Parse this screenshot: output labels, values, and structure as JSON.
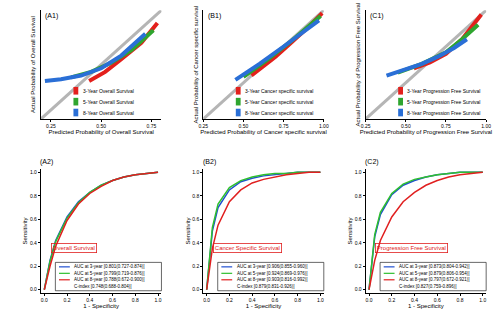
{
  "chart_data": [
    {
      "type": "calibration",
      "title": "(A1)",
      "x_label": "Predicted Probability of Overall Survival",
      "y_label": "Actual Probability of Overall Survival",
      "xlim": [
        0.2,
        0.8
      ],
      "ylim": [
        0.2,
        0.8
      ],
      "xticks": [
        0.25,
        {
          "value": 0.5,
          "label": "0.50"
        },
        0.75
      ],
      "tick_labels": "x",
      "legend": "lower right",
      "series": [
        {
          "color": "#b5b5b5",
          "x": [
            0.2,
            0.8
          ],
          "values": [
            0.2,
            0.8
          ]
        },
        {
          "name": "3-Year Overall Survival",
          "color": "#e3201c",
          "x": [
            0.44,
            0.52,
            0.6,
            0.7,
            0.78
          ],
          "values": [
            0.41,
            0.46,
            0.53,
            0.62,
            0.73
          ]
        },
        {
          "name": "5-Year Overall Survival",
          "color": "#2fa52f",
          "x": [
            0.35,
            0.45,
            0.55,
            0.65,
            0.76
          ],
          "values": [
            0.43,
            0.46,
            0.51,
            0.58,
            0.69
          ]
        },
        {
          "name": "8-Year Overall Survival",
          "color": "#2a6fd6",
          "x": [
            0.22,
            0.3,
            0.4,
            0.5,
            0.6,
            0.72
          ],
          "values": [
            0.41,
            0.42,
            0.44,
            0.48,
            0.55,
            0.67
          ]
        }
      ]
    },
    {
      "type": "calibration",
      "title": "(B1)",
      "x_label": "Predicted Probability of Cancer specific survival",
      "y_label": "Actual Probability of Cancer specific survival",
      "xlim": [
        0.25,
        1.0
      ],
      "ylim": [
        0.25,
        1.0
      ],
      "xticks": [
        0.25,
        {
          "value": 0.5,
          "label": "0.50"
        },
        0.75,
        {
          "value": 1,
          "label": "1.00"
        }
      ],
      "tick_labels": "x",
      "legend": "lower right",
      "series": [
        {
          "color": "#b5b5b5",
          "x": [
            0.25,
            1.0
          ],
          "values": [
            0.25,
            1.0
          ]
        },
        {
          "name": "3-Year Cancer specific survival",
          "color": "#e3201c",
          "x": [
            0.55,
            0.7,
            0.8,
            0.9,
            0.99
          ],
          "values": [
            0.55,
            0.68,
            0.78,
            0.88,
            0.98
          ]
        },
        {
          "name": "5-Year Cancer specific survival",
          "color": "#2fa52f",
          "x": [
            0.5,
            0.65,
            0.8,
            0.9,
            0.98
          ],
          "values": [
            0.54,
            0.66,
            0.79,
            0.88,
            0.96
          ]
        },
        {
          "name": "8-Year Cancer specific survival",
          "color": "#2a6fd6",
          "x": [
            0.45,
            0.6,
            0.75,
            0.9,
            0.97
          ],
          "values": [
            0.52,
            0.63,
            0.75,
            0.87,
            0.93
          ]
        }
      ]
    },
    {
      "type": "calibration",
      "title": "(C1)",
      "x_label": "Predicted Probability of Progression Free Survival",
      "y_label": "Actual Probability of Progression Free Survival",
      "xlim": [
        0.25,
        1.0
      ],
      "ylim": [
        0.25,
        1.0
      ],
      "xticks": [
        0.25,
        {
          "value": 0.5,
          "label": "0.50"
        },
        0.75,
        {
          "value": 1,
          "label": "1.00"
        }
      ],
      "tick_labels": "x",
      "legend": "lower right",
      "series": [
        {
          "color": "#b5b5b5",
          "x": [
            0.25,
            1.0
          ],
          "values": [
            0.25,
            1.0
          ]
        },
        {
          "name": "3-Year Progression Free Survival",
          "color": "#e3201c",
          "x": [
            0.55,
            0.65,
            0.75,
            0.85,
            0.97
          ],
          "values": [
            0.6,
            0.64,
            0.7,
            0.8,
            0.97
          ]
        },
        {
          "name": "5-Year Progression Free Survival",
          "color": "#2fa52f",
          "x": [
            0.45,
            0.6,
            0.75,
            0.85,
            0.95
          ],
          "values": [
            0.57,
            0.63,
            0.71,
            0.8,
            0.9
          ]
        },
        {
          "name": "8-Year Progression Free Survival",
          "color": "#2a6fd6",
          "x": [
            0.38,
            0.5,
            0.6,
            0.7,
            0.8,
            0.88
          ],
          "values": [
            0.55,
            0.59,
            0.63,
            0.68,
            0.74,
            0.8
          ]
        }
      ]
    },
    {
      "type": "roc",
      "title": "(A2)",
      "x_label": "1 - Specificity",
      "y_label": "Sensitivity",
      "xlim": [
        -0.03,
        1.03
      ],
      "ylim": [
        -0.03,
        1.03
      ],
      "xticks": [
        {
          "value": 0,
          "label": "0.0"
        },
        0.2,
        0.4,
        0.6,
        0.8,
        {
          "value": 1,
          "label": "1.0"
        }
      ],
      "yticks": [
        {
          "value": 0,
          "label": "0.0"
        },
        0.2,
        0.4,
        0.6,
        0.8,
        {
          "value": 1,
          "label": "1.0"
        }
      ],
      "legend": "lower right",
      "annotations": [
        "Overall Survival",
        "C-index [0.748(0.688-0.804)]"
      ],
      "series": [
        {
          "name": "AUC at 3-year [0.801(0.727-0.874)]",
          "color": "#1f4fd0",
          "x": [
            0,
            0.05,
            0.1,
            0.2,
            0.3,
            0.4,
            0.5,
            0.6,
            0.7,
            0.8,
            0.9,
            1
          ],
          "values": [
            0,
            0.25,
            0.42,
            0.62,
            0.75,
            0.83,
            0.89,
            0.93,
            0.96,
            0.98,
            0.99,
            1
          ]
        },
        {
          "name": "AUC at 5-year [0.799(0.719-0.876)]",
          "color": "#2fbf2f",
          "x": [
            0,
            0.05,
            0.1,
            0.2,
            0.3,
            0.4,
            0.5,
            0.6,
            0.7,
            0.8,
            0.9,
            1
          ],
          "values": [
            0,
            0.24,
            0.41,
            0.61,
            0.74,
            0.83,
            0.89,
            0.93,
            0.96,
            0.98,
            0.99,
            1
          ]
        },
        {
          "name": "AUC at 8-year [0.788(0.672-0.900)]",
          "color": "#e02020",
          "x": [
            0,
            0.05,
            0.1,
            0.2,
            0.3,
            0.4,
            0.5,
            0.6,
            0.7,
            0.8,
            0.9,
            1
          ],
          "values": [
            0,
            0.2,
            0.37,
            0.59,
            0.73,
            0.82,
            0.88,
            0.93,
            0.96,
            0.98,
            0.99,
            1
          ]
        }
      ]
    },
    {
      "type": "roc",
      "title": "(B2)",
      "x_label": "1 - Specificity",
      "y_label": "Sensitivity",
      "xlim": [
        -0.03,
        1.03
      ],
      "ylim": [
        -0.03,
        1.03
      ],
      "xticks": [
        {
          "value": 0,
          "label": "0.0"
        },
        0.2,
        0.4,
        0.6,
        0.8,
        {
          "value": 1,
          "label": "1.0"
        }
      ],
      "yticks": [
        {
          "value": 0,
          "label": "0.0"
        },
        0.2,
        0.4,
        0.6,
        0.8,
        {
          "value": 1,
          "label": "1.0"
        }
      ],
      "legend": "lower right",
      "annotations": [
        "Cancer Specific Survival",
        "C-index [0.879(0.831-0.926)]"
      ],
      "series": [
        {
          "name": "AUC at 3-year [0.906(0.855-0.960)]",
          "color": "#1f4fd0",
          "x": [
            0,
            0.05,
            0.1,
            0.2,
            0.3,
            0.4,
            0.5,
            0.6,
            0.7,
            0.8,
            0.9,
            1
          ],
          "values": [
            0,
            0.5,
            0.7,
            0.85,
            0.92,
            0.95,
            0.97,
            0.98,
            0.99,
            1,
            1,
            1
          ]
        },
        {
          "name": "AUC at 5-year [0.924(0.869-0.976)]",
          "color": "#2fbf2f",
          "x": [
            0,
            0.05,
            0.1,
            0.2,
            0.3,
            0.4,
            0.5,
            0.6,
            0.7,
            0.8,
            0.9,
            1
          ],
          "values": [
            0,
            0.53,
            0.73,
            0.87,
            0.93,
            0.96,
            0.98,
            0.99,
            0.99,
            1,
            1,
            1
          ]
        },
        {
          "name": "AUC at 8-year [0.903(0.816-0.992)]",
          "color": "#e02020",
          "x": [
            0,
            0.05,
            0.1,
            0.2,
            0.3,
            0.4,
            0.5,
            0.6,
            0.7,
            0.8,
            0.9,
            1
          ],
          "values": [
            0,
            0.35,
            0.55,
            0.75,
            0.85,
            0.91,
            0.94,
            0.96,
            0.98,
            0.99,
            1,
            1
          ]
        }
      ]
    },
    {
      "type": "roc",
      "title": "(C2)",
      "x_label": "1 - Specificity",
      "y_label": "Sensitivity",
      "xlim": [
        -0.03,
        1.03
      ],
      "ylim": [
        -0.03,
        1.03
      ],
      "xticks": [
        {
          "value": 0,
          "label": "0.0"
        },
        0.2,
        0.4,
        0.6,
        0.8,
        {
          "value": 1,
          "label": "1.0"
        }
      ],
      "yticks": [
        {
          "value": 0,
          "label": "0.0"
        },
        0.2,
        0.4,
        0.6,
        0.8,
        {
          "value": 1,
          "label": "1.0"
        }
      ],
      "legend": "lower right",
      "annotations": [
        "Progression Free Survival",
        "C-index [0.827(0.759-0.896)]"
      ],
      "series": [
        {
          "name": "AUC at 3-year [0.873(0.804-0.942)]",
          "color": "#1f4fd0",
          "x": [
            0,
            0.05,
            0.1,
            0.2,
            0.3,
            0.4,
            0.5,
            0.6,
            0.7,
            0.8,
            0.9,
            1
          ],
          "values": [
            0,
            0.45,
            0.64,
            0.81,
            0.89,
            0.93,
            0.96,
            0.98,
            0.99,
            1,
            1,
            1
          ]
        },
        {
          "name": "AUC at 5-year [0.879(0.806-0.954)]",
          "color": "#2fbf2f",
          "x": [
            0,
            0.05,
            0.1,
            0.2,
            0.3,
            0.4,
            0.5,
            0.6,
            0.7,
            0.8,
            0.9,
            1
          ],
          "values": [
            0,
            0.47,
            0.66,
            0.82,
            0.9,
            0.94,
            0.96,
            0.98,
            0.99,
            1,
            1,
            1
          ]
        },
        {
          "name": "AUC at 8-year [0.797(0.672-0.921)]",
          "color": "#e02020",
          "x": [
            0,
            0.05,
            0.1,
            0.2,
            0.3,
            0.4,
            0.5,
            0.6,
            0.7,
            0.8,
            0.9,
            1
          ],
          "values": [
            0,
            0.25,
            0.42,
            0.62,
            0.75,
            0.83,
            0.89,
            0.93,
            0.96,
            0.98,
            0.99,
            1
          ]
        }
      ]
    }
  ]
}
